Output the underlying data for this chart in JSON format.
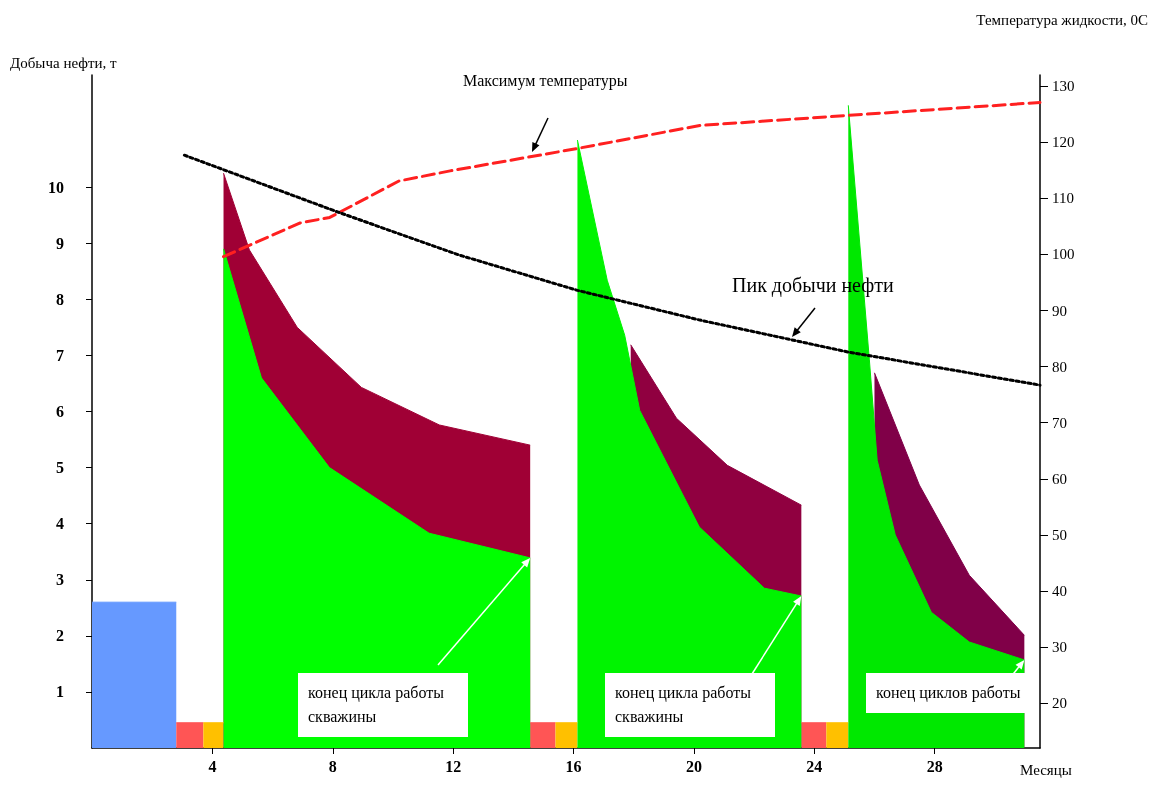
{
  "chart_data": {
    "type": "area",
    "ylabel": "Добыча нефти, т",
    "y2label": "Температура жидкости, 0С",
    "xlabel": "Месяцы",
    "xlim": [
      0,
      31.5
    ],
    "xticks": [
      4,
      8,
      12,
      16,
      20,
      24,
      28
    ],
    "ylim": [
      0,
      12
    ],
    "yticks": [
      1,
      2,
      3,
      4,
      5,
      6,
      7,
      8,
      9,
      10
    ],
    "y2lim": [
      12,
      132
    ],
    "y2ticks": [
      20,
      30,
      40,
      50,
      60,
      70,
      80,
      90,
      100,
      110,
      120,
      130
    ],
    "grid": false,
    "marker": "none",
    "annotations": [
      "Максимум температуры",
      "Пик добычи нефти",
      {
        "text": "конец цикла работы скважины",
        "x": 14.56,
        "y": 3.39
      },
      {
        "text": "конец цикла работы скважины",
        "x": 23.57,
        "y": 2.71
      },
      {
        "text": "конец циклов работы",
        "x": 30.98,
        "y": 1.57
      }
    ],
    "series": [
      {
        "color": "#6699ff",
        "x": [
          0,
          2.8
        ],
        "values": [
          2.6,
          2.6
        ]
      },
      {
        "color": "#ff5555",
        "x": [
          2.8,
          3.7
        ],
        "values": [
          0.45,
          0.45
        ]
      },
      {
        "color": "#ffc000",
        "x": [
          3.7,
          4.37
        ],
        "values": [
          0.45,
          0.45
        ]
      },
      {
        "color": "#ff5555",
        "x": [
          14.56,
          15.4
        ],
        "values": [
          0.45,
          0.45
        ]
      },
      {
        "color": "#ffc000",
        "x": [
          15.4,
          16.13
        ],
        "values": [
          0.45,
          0.45
        ]
      },
      {
        "color": "#ff5555",
        "x": [
          23.57,
          24.4
        ],
        "values": [
          0.45,
          0.45
        ]
      },
      {
        "color": "#ffc000",
        "x": [
          24.4,
          25.13
        ],
        "values": [
          0.45,
          0.45
        ]
      },
      {
        "color": "#a00035",
        "x": [
          4.37,
          5.23,
          6.82,
          8.95,
          11.54,
          14.56
        ],
        "values": [
          10.25,
          8.88,
          7.5,
          6.43,
          5.76,
          5.4
        ]
      },
      {
        "color": "#900040",
        "x": [
          17.9,
          19.42,
          21.11,
          23.57
        ],
        "values": [
          7.19,
          5.88,
          5.04,
          4.33
        ]
      },
      {
        "color": "#800048",
        "x": [
          26.0,
          27.49,
          29.15,
          30.98
        ],
        "values": [
          6.69,
          4.69,
          3.08,
          2.01
        ]
      },
      {
        "color": "#00ff00",
        "x": [
          4.37,
          5.63,
          7.89,
          11.2,
          14.56
        ],
        "values": [
          8.9,
          6.6,
          5.0,
          3.83,
          3.39
        ]
      },
      {
        "color": "#00f400",
        "x": [
          16.13,
          17.12,
          17.7,
          18.2,
          20.18,
          22.34,
          23.57
        ],
        "values": [
          10.84,
          8.34,
          7.36,
          6.02,
          3.94,
          2.85,
          2.71
        ]
      },
      {
        "color": "#00e800",
        "x": [
          25.13,
          25.83,
          26.09,
          26.69,
          27.89,
          29.15,
          30.98
        ],
        "values": [
          11.46,
          6.92,
          5.13,
          3.8,
          2.42,
          1.89,
          1.57
        ]
      },
      {
        "type": "line",
        "color": "#ff2020",
        "line_style": "dashed",
        "axis": "y2",
        "x": [
          4.37,
          6.9,
          7.9,
          10.2,
          11.9,
          16.13,
          20.2,
          25.13,
          31.5
        ],
        "values": [
          99.6,
          105.6,
          106.6,
          113.1,
          114.9,
          118.9,
          123,
          124.8,
          127.1
        ]
      },
      {
        "type": "line",
        "color": "#000000",
        "line_style": "dotted",
        "x": [
          3.07,
          8.2,
          12.2,
          16.13,
          20.2,
          25.13,
          31.5
        ],
        "values": [
          10.57,
          9.55,
          8.79,
          8.16,
          7.63,
          7.06,
          6.47
        ]
      }
    ]
  }
}
